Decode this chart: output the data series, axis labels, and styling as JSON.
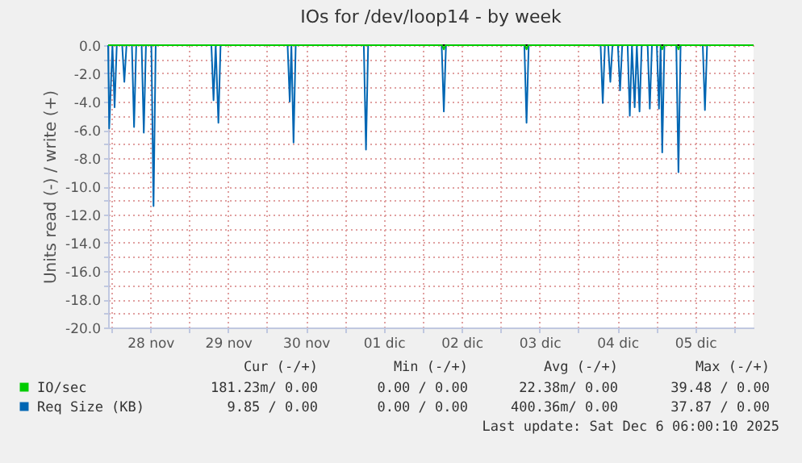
{
  "chart_data": {
    "type": "line",
    "title": "IOs for /dev/loop14 - by week",
    "ylabel": "Units read (-) / write (+)",
    "xlim": [
      "2025-11-27T23:00",
      "2025-12-06T06:00"
    ],
    "ylim": [
      -20,
      0
    ],
    "xticks": [
      {
        "value": "2025-11-28T00:00",
        "label": null
      },
      {
        "value": "2025-11-28T12:00",
        "label": "28 nov"
      },
      {
        "value": "2025-11-29T00:00",
        "label": null
      },
      {
        "value": "2025-11-29T12:00",
        "label": "29 nov"
      },
      {
        "value": "2025-11-30T00:00",
        "label": null
      },
      {
        "value": "2025-11-30T12:00",
        "label": "30 nov"
      },
      {
        "value": "2025-12-01T00:00",
        "label": null
      },
      {
        "value": "2025-12-01T12:00",
        "label": "01 dic"
      },
      {
        "value": "2025-12-02T00:00",
        "label": null
      },
      {
        "value": "2025-12-02T12:00",
        "label": "02 dic"
      },
      {
        "value": "2025-12-03T00:00",
        "label": null
      },
      {
        "value": "2025-12-03T12:00",
        "label": "03 dic"
      },
      {
        "value": "2025-12-04T00:00",
        "label": null
      },
      {
        "value": "2025-12-04T12:00",
        "label": "04 dic"
      },
      {
        "value": "2025-12-05T00:00",
        "label": null
      },
      {
        "value": "2025-12-05T12:00",
        "label": "05 dic"
      },
      {
        "value": "2025-12-06T00:00",
        "label": null
      }
    ],
    "yticks": [
      {
        "value": 0,
        "label": "0.0"
      },
      {
        "value": -1,
        "label": null
      },
      {
        "value": -2,
        "label": "-2.0"
      },
      {
        "value": -3,
        "label": null
      },
      {
        "value": -4,
        "label": "-4.0"
      },
      {
        "value": -5,
        "label": null
      },
      {
        "value": -6,
        "label": "-6.0"
      },
      {
        "value": -7,
        "label": null
      },
      {
        "value": -8,
        "label": "-8.0"
      },
      {
        "value": -9,
        "label": null
      },
      {
        "value": -10,
        "label": "-10.0"
      },
      {
        "value": -11,
        "label": null
      },
      {
        "value": -12,
        "label": "-12.0"
      },
      {
        "value": -13,
        "label": null
      },
      {
        "value": -14,
        "label": "-14.0"
      },
      {
        "value": -15,
        "label": null
      },
      {
        "value": -16,
        "label": "-16.0"
      },
      {
        "value": -17,
        "label": null
      },
      {
        "value": -18,
        "label": "-18.0"
      },
      {
        "value": -19,
        "label": null
      },
      {
        "value": -20,
        "label": "-20.0"
      }
    ],
    "grid": true,
    "legend": "bottom",
    "line_style": "solid",
    "ref_lines": [
      {
        "axis": "y",
        "value": 0,
        "color": "#000000"
      }
    ],
    "series": [
      {
        "name": "IO/sec",
        "color": "#00cc00",
        "x": [
          "2025-11-27T23:00",
          "2025-12-02T06:00",
          "2025-12-02T06:30",
          "2025-12-02T07:00",
          "2025-12-03T07:30",
          "2025-12-03T08:00",
          "2025-12-03T08:30",
          "2025-12-05T01:20",
          "2025-12-05T01:50",
          "2025-12-05T02:20",
          "2025-12-05T06:20",
          "2025-12-05T06:50",
          "2025-12-05T07:20",
          "2025-12-06T06:00"
        ],
        "values": [
          0,
          0,
          -0.3,
          0,
          0,
          -0.3,
          0,
          0,
          -0.3,
          0,
          0,
          -0.3,
          0,
          0
        ]
      },
      {
        "name": "Req Size (KB)",
        "color": "#0066b3",
        "x": [
          "2025-11-27T23:00",
          "2025-11-27T23:20",
          "2025-11-28T00:20",
          "2025-11-28T01:00",
          "2025-11-28T01:40",
          "2025-11-28T03:20",
          "2025-11-28T04:00",
          "2025-11-28T04:40",
          "2025-11-28T06:20",
          "2025-11-28T07:00",
          "2025-11-28T07:40",
          "2025-11-28T09:20",
          "2025-11-28T10:00",
          "2025-11-28T10:40",
          "2025-11-28T12:20",
          "2025-11-28T13:00",
          "2025-11-28T13:40",
          "2025-11-29T06:50",
          "2025-11-29T07:30",
          "2025-11-29T08:10",
          "2025-11-29T09:00",
          "2025-11-29T09:40",
          "2025-11-30T06:20",
          "2025-11-30T07:00",
          "2025-11-30T07:30",
          "2025-11-30T08:10",
          "2025-11-30T08:50",
          "2025-12-01T05:50",
          "2025-12-01T06:30",
          "2025-12-01T07:10",
          "2025-12-02T05:50",
          "2025-12-02T06:30",
          "2025-12-02T07:10",
          "2025-12-03T07:20",
          "2025-12-03T08:00",
          "2025-12-03T08:40",
          "2025-12-04T06:50",
          "2025-12-04T07:30",
          "2025-12-04T08:10",
          "2025-12-04T09:10",
          "2025-12-04T09:50",
          "2025-12-04T10:30",
          "2025-12-04T12:10",
          "2025-12-04T12:50",
          "2025-12-04T13:30",
          "2025-12-04T15:10",
          "2025-12-04T15:50",
          "2025-12-04T16:30",
          "2025-12-04T17:20",
          "2025-12-04T18:00",
          "2025-12-04T18:50",
          "2025-12-04T19:30",
          "2025-12-04T21:20",
          "2025-12-04T22:00",
          "2025-12-04T22:40",
          "2025-12-05T00:10",
          "2025-12-05T00:50",
          "2025-12-05T01:20",
          "2025-12-05T01:50",
          "2025-12-05T02:30",
          "2025-12-05T06:10",
          "2025-12-05T06:50",
          "2025-12-05T07:30",
          "2025-12-05T14:20",
          "2025-12-05T15:00",
          "2025-12-05T15:40",
          "2025-12-06T06:00"
        ],
        "values": [
          0,
          -5.9,
          0,
          -4.4,
          0,
          0,
          -2.6,
          0,
          0,
          -5.8,
          0,
          0,
          -6.2,
          0,
          0,
          -11.4,
          0,
          0,
          -3.9,
          0,
          -5.5,
          0,
          0,
          -4.0,
          0,
          -6.9,
          0,
          0,
          -7.4,
          0,
          0,
          -4.7,
          0,
          0,
          -5.5,
          0,
          0,
          -4.1,
          0,
          0,
          -2.6,
          0,
          0,
          -3.2,
          0,
          0,
          -5.0,
          0,
          -4.4,
          0,
          -4.7,
          0,
          0,
          -4.5,
          0,
          0,
          -4.5,
          0,
          -7.6,
          0,
          0,
          -9.0,
          0,
          0,
          -4.6,
          0,
          0
        ]
      }
    ],
    "annotations": [
      "Cur (-/+)",
      "Min (-/+)",
      "Avg (-/+)",
      "Max (-/+)",
      "181.23m/ 0.00",
      "0.00 / 0.00",
      "22.38m/ 0.00",
      "39.48 / 0.00",
      "9.85 / 0.00",
      "0.00 / 0.00",
      "400.36m/ 0.00",
      "37.87 / 0.00",
      "Last update: Sat Dec  6 06:00:10 2025"
    ]
  }
}
